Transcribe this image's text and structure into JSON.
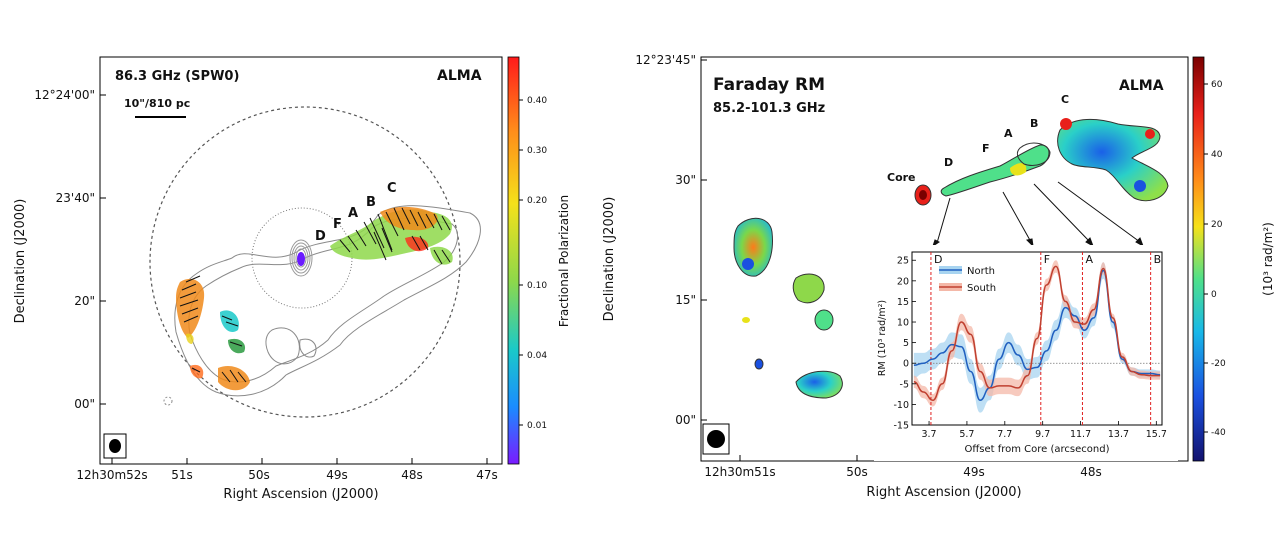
{
  "figure": "ALMA polarization and Faraday rotation measure maps of the M87 jet",
  "left_panel": {
    "band_label": "86.3 GHz (SPW0)",
    "telescope": "ALMA",
    "scale_bar_label": "10\"/810 pc",
    "x_axis_label": "Right Ascension (J2000)",
    "y_axis_label": "Declination (J2000)",
    "x_ticks": [
      "12h30m52s",
      "51s",
      "50s",
      "49s",
      "48s",
      "47s"
    ],
    "y_ticks": [
      "12°24'00\"",
      "23'40\"",
      "20\"",
      "00\""
    ],
    "knot_labels": [
      "D",
      "F",
      "A",
      "B",
      "C"
    ],
    "colorbar": {
      "label": "Fractional Polarization",
      "ticks": [
        "0.40",
        "0.30",
        "0.20",
        "0.10",
        "0.04",
        "0.01"
      ],
      "colors": [
        "#ff1a1a",
        "#ff8c1a",
        "#f5e11a",
        "#8ed84a",
        "#1ac9c9",
        "#1a8cff",
        "#7a1aff"
      ]
    }
  },
  "right_panel": {
    "title": "Faraday RM",
    "freq_range": "85.2-101.3 GHz",
    "telescope": "ALMA",
    "x_axis_label": "Right Ascension (J2000)",
    "y_axis_label": "Declination (J2000)",
    "x_ticks": [
      "12h30m51s",
      "50s",
      "49s",
      "48s"
    ],
    "y_ticks": [
      "12°23'45\"",
      "30\"",
      "15\"",
      "00\""
    ],
    "knot_labels": [
      "Core",
      "D",
      "F",
      "A",
      "B",
      "C"
    ],
    "colorbar": {
      "label": "(10³ rad/m²)",
      "ticks": [
        "60",
        "40",
        "20",
        "0",
        "-20",
        "-40"
      ],
      "colors": [
        "#7a0000",
        "#e8201a",
        "#ff8a1a",
        "#f5e11a",
        "#4fe08a",
        "#18b8e8",
        "#1a50e0",
        "#12126e"
      ]
    }
  },
  "chart_data": {
    "type": "line",
    "title": "",
    "xlabel": "Offset from Core (arcsecond)",
    "ylabel": "RM (10³ rad/m²)",
    "xlim": [
      2.8,
      16.0
    ],
    "ylim": [
      -15,
      27
    ],
    "x_ticks": [
      3.7,
      5.7,
      7.7,
      9.7,
      11.7,
      13.7,
      15.7
    ],
    "x_tick_labels": [
      "3.7",
      "5.7",
      "7.7",
      "9.7",
      "11.7",
      "13.7",
      "15.7"
    ],
    "y_ticks": [
      -15,
      -10,
      -5,
      0,
      5,
      10,
      15,
      20,
      25
    ],
    "y_tick_labels": [
      "-15",
      "-10",
      "-5",
      "0",
      "5",
      "10",
      "15",
      "20",
      "25"
    ],
    "x": [
      2.9,
      3.4,
      3.9,
      4.4,
      4.9,
      5.4,
      5.9,
      6.4,
      6.9,
      7.4,
      7.9,
      8.4,
      8.9,
      9.4,
      9.9,
      10.4,
      10.9,
      11.4,
      11.9,
      12.4,
      12.9,
      13.4,
      13.9,
      14.4,
      14.9,
      15.4,
      15.9
    ],
    "series": [
      {
        "name": "North",
        "color": "#2060c0",
        "band_color": "#a8d4f0",
        "values": [
          -0.5,
          0.0,
          1.0,
          2.5,
          4.5,
          4.0,
          -2.0,
          -9.0,
          -6.0,
          1.0,
          5.0,
          2.0,
          -1.5,
          -1.0,
          3.0,
          8.0,
          13.5,
          11.5,
          8.0,
          11.0,
          22.5,
          10.0,
          1.0,
          -2.0,
          -2.5,
          -2.5,
          -2.8
        ],
        "band": [
          3.0,
          2.5,
          2.5,
          2.5,
          3.0,
          3.0,
          3.0,
          3.0,
          3.0,
          2.5,
          2.5,
          2.5,
          2.5,
          2.5,
          2.5,
          2.5,
          2.5,
          2.0,
          2.0,
          2.0,
          2.0,
          1.5,
          1.0,
          1.0,
          1.0,
          1.0,
          1.0
        ]
      },
      {
        "name": "South",
        "color": "#c04030",
        "band_color": "#f4b8a8",
        "values": [
          -4.5,
          -7.0,
          -9.0,
          -5.0,
          3.0,
          10.0,
          7.0,
          -2.0,
          -6.0,
          -5.5,
          -5.5,
          -6.0,
          -3.0,
          6.0,
          19.0,
          23.5,
          15.0,
          10.0,
          9.5,
          13.0,
          23.0,
          11.0,
          1.5,
          -2.0,
          -2.8,
          -3.0,
          -3.0
        ],
        "band": [
          1.5,
          1.5,
          1.5,
          1.5,
          2.0,
          2.0,
          2.0,
          2.0,
          2.0,
          2.0,
          2.0,
          2.0,
          2.0,
          1.5,
          1.5,
          1.5,
          1.5,
          1.5,
          1.5,
          1.5,
          1.5,
          1.0,
          1.0,
          1.0,
          1.0,
          1.0,
          1.0
        ]
      }
    ],
    "legend": [
      "North",
      "South"
    ],
    "legend_position": "top-left",
    "markers": [
      {
        "label": "D",
        "x": 3.8
      },
      {
        "label": "F",
        "x": 9.6
      },
      {
        "label": "A",
        "x": 11.8
      },
      {
        "label": "B",
        "x": 15.4
      }
    ]
  }
}
